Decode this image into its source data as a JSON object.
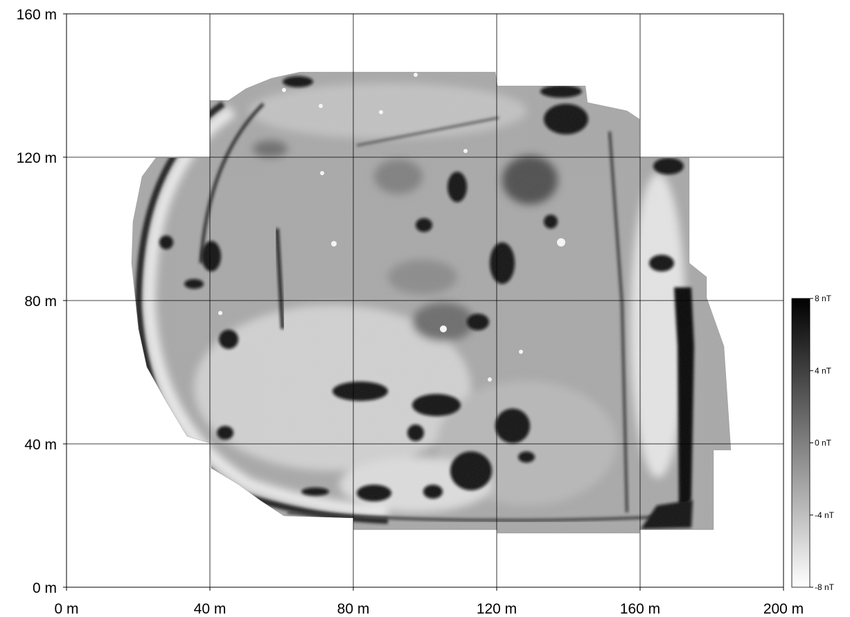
{
  "map": {
    "type": "magnetometry-survey",
    "x_axis": {
      "range": [
        0,
        200
      ],
      "ticks": [
        {
          "value": 0,
          "label": "0 m"
        },
        {
          "value": 40,
          "label": "40 m"
        },
        {
          "value": 80,
          "label": "80 m"
        },
        {
          "value": 120,
          "label": "120 m"
        },
        {
          "value": 160,
          "label": "160 m"
        },
        {
          "value": 200,
          "label": "200 m"
        }
      ]
    },
    "y_axis": {
      "range": [
        0,
        160
      ],
      "ticks": [
        {
          "value": 0,
          "label": "0 m"
        },
        {
          "value": 40,
          "label": "40 m"
        },
        {
          "value": 80,
          "label": "80 m"
        },
        {
          "value": 120,
          "label": "120 m"
        },
        {
          "value": 160,
          "label": "160 m"
        }
      ]
    },
    "grid": true,
    "colormap": "grayscale (white = -8 nT, black = 8 nT)",
    "colorbar": {
      "range": [
        -8,
        8
      ],
      "ticks": [
        {
          "value": 8,
          "label": "8 nT"
        },
        {
          "value": 4,
          "label": "4 nT"
        },
        {
          "value": 0,
          "label": "0 nT"
        },
        {
          "value": -4,
          "label": "-4 nT"
        },
        {
          "value": -8,
          "label": "-8 nT"
        }
      ]
    }
  }
}
